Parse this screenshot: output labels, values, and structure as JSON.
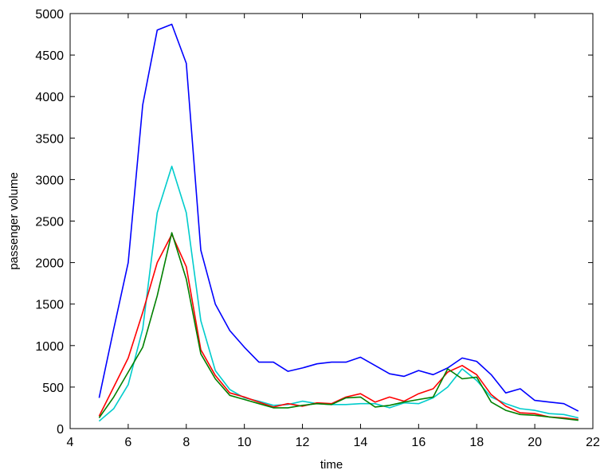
{
  "chart_data": {
    "type": "line",
    "xlabel": "time",
    "ylabel": "passenger volume",
    "xlim": [
      4,
      22
    ],
    "ylim": [
      0,
      5000
    ],
    "xticks": [
      4,
      6,
      8,
      10,
      12,
      14,
      16,
      18,
      20,
      22
    ],
    "yticks": [
      0,
      500,
      1000,
      1500,
      2000,
      2500,
      3000,
      3500,
      4000,
      4500,
      5000
    ],
    "grid": false,
    "x": [
      5,
      5.5,
      6,
      6.5,
      7,
      7.5,
      8,
      8.5,
      9,
      9.5,
      10,
      10.5,
      11,
      11.5,
      12,
      12.5,
      13,
      13.5,
      14,
      14.5,
      15,
      15.5,
      16,
      16.5,
      17,
      17.5,
      18,
      18.5,
      19,
      19.5,
      20,
      20.5,
      21,
      21.5
    ],
    "series": [
      {
        "color": "#0000ff",
        "values": [
          370,
          1200,
          2000,
          3900,
          4800,
          4870,
          4400,
          2150,
          1500,
          1180,
          980,
          800,
          800,
          690,
          730,
          780,
          800,
          800,
          860,
          760,
          660,
          630,
          700,
          650,
          730,
          850,
          810,
          650,
          430,
          480,
          340,
          320,
          300,
          210
        ]
      },
      {
        "color": "#00cccc",
        "values": [
          90,
          240,
          530,
          1200,
          2600,
          3160,
          2600,
          1300,
          700,
          470,
          370,
          330,
          280,
          290,
          330,
          300,
          290,
          290,
          300,
          300,
          250,
          310,
          300,
          370,
          500,
          720,
          580,
          380,
          300,
          240,
          220,
          180,
          170,
          130
        ]
      },
      {
        "color": "#ff0000",
        "values": [
          150,
          500,
          850,
          1400,
          2000,
          2340,
          1950,
          950,
          640,
          430,
          380,
          320,
          260,
          300,
          270,
          310,
          300,
          380,
          420,
          320,
          380,
          330,
          420,
          480,
          680,
          760,
          650,
          410,
          270,
          190,
          180,
          140,
          130,
          110
        ]
      },
      {
        "color": "#008000",
        "values": [
          130,
          380,
          680,
          980,
          1600,
          2360,
          1800,
          900,
          600,
          400,
          350,
          300,
          250,
          250,
          280,
          300,
          290,
          370,
          380,
          260,
          280,
          320,
          350,
          380,
          720,
          600,
          620,
          320,
          220,
          170,
          160,
          140,
          120,
          100
        ]
      }
    ]
  }
}
